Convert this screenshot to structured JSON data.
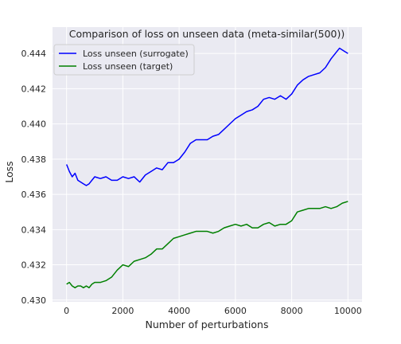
{
  "chart_data": {
    "type": "line",
    "title": "Comparison of loss on unseen data (meta-similar(500))",
    "xlabel": "Number of perturbations",
    "ylabel": "Loss",
    "xlim": [
      -500,
      10500
    ],
    "ylim": [
      0.4299,
      0.4455
    ],
    "xticks": [
      0,
      2000,
      4000,
      6000,
      8000,
      10000
    ],
    "yticks": [
      0.43,
      0.432,
      0.434,
      0.436,
      0.438,
      0.44,
      0.442,
      0.444
    ],
    "xtick_labels": [
      "0",
      "2000",
      "4000",
      "6000",
      "8000",
      "10000"
    ],
    "ytick_labels": [
      "0.430",
      "0.432",
      "0.434",
      "0.436",
      "0.438",
      "0.440",
      "0.442",
      "0.444"
    ],
    "grid": true,
    "legend_position": "upper-left",
    "background": "#eaeaf2",
    "series": [
      {
        "name": "Loss unseen (surrogate)",
        "color": "#0000ff",
        "x": [
          0,
          100,
          200,
          300,
          400,
          500,
          600,
          700,
          800,
          900,
          1000,
          1200,
          1400,
          1600,
          1800,
          2000,
          2200,
          2400,
          2600,
          2800,
          3000,
          3200,
          3400,
          3600,
          3800,
          4000,
          4200,
          4400,
          4600,
          4800,
          5000,
          5200,
          5400,
          5600,
          5800,
          6000,
          6200,
          6400,
          6600,
          6800,
          7000,
          7200,
          7400,
          7600,
          7800,
          8000,
          8200,
          8400,
          8600,
          8800,
          9000,
          9200,
          9400,
          9600,
          9700,
          9800,
          9900,
          10000
        ],
        "y": [
          0.4377,
          0.4373,
          0.437,
          0.4372,
          0.4368,
          0.4367,
          0.4366,
          0.4365,
          0.4366,
          0.4368,
          0.437,
          0.4369,
          0.437,
          0.4368,
          0.4368,
          0.437,
          0.4369,
          0.437,
          0.4367,
          0.4371,
          0.4373,
          0.4375,
          0.4374,
          0.4378,
          0.4378,
          0.438,
          0.4384,
          0.4389,
          0.4391,
          0.4391,
          0.4391,
          0.4393,
          0.4394,
          0.4397,
          0.44,
          0.4403,
          0.4405,
          0.4407,
          0.4408,
          0.441,
          0.4414,
          0.4415,
          0.4414,
          0.4416,
          0.4414,
          0.4417,
          0.4422,
          0.4425,
          0.4427,
          0.4428,
          0.4429,
          0.4432,
          0.4437,
          0.4441,
          0.4443,
          0.4442,
          0.4441,
          0.444
        ]
      },
      {
        "name": "Loss unseen (target)",
        "color": "#008000",
        "x": [
          0,
          100,
          200,
          300,
          400,
          500,
          600,
          700,
          800,
          900,
          1000,
          1200,
          1400,
          1600,
          1800,
          2000,
          2200,
          2400,
          2600,
          2800,
          3000,
          3200,
          3400,
          3600,
          3800,
          4000,
          4200,
          4400,
          4600,
          4800,
          5000,
          5200,
          5400,
          5600,
          5800,
          6000,
          6200,
          6400,
          6600,
          6800,
          7000,
          7200,
          7400,
          7600,
          7800,
          8000,
          8200,
          8400,
          8600,
          8800,
          9000,
          9200,
          9400,
          9600,
          9800,
          10000
        ],
        "y": [
          0.4309,
          0.431,
          0.4308,
          0.4307,
          0.4308,
          0.4308,
          0.4307,
          0.4308,
          0.4307,
          0.4309,
          0.431,
          0.431,
          0.4311,
          0.4313,
          0.4317,
          0.432,
          0.4319,
          0.4322,
          0.4323,
          0.4324,
          0.4326,
          0.4329,
          0.4329,
          0.4332,
          0.4335,
          0.4336,
          0.4337,
          0.4338,
          0.4339,
          0.4339,
          0.4339,
          0.4338,
          0.4339,
          0.4341,
          0.4342,
          0.4343,
          0.4342,
          0.4343,
          0.4341,
          0.4341,
          0.4343,
          0.4344,
          0.4342,
          0.4343,
          0.4343,
          0.4345,
          0.435,
          0.4351,
          0.4352,
          0.4352,
          0.4352,
          0.4353,
          0.4352,
          0.4353,
          0.4355,
          0.4356
        ]
      }
    ]
  }
}
